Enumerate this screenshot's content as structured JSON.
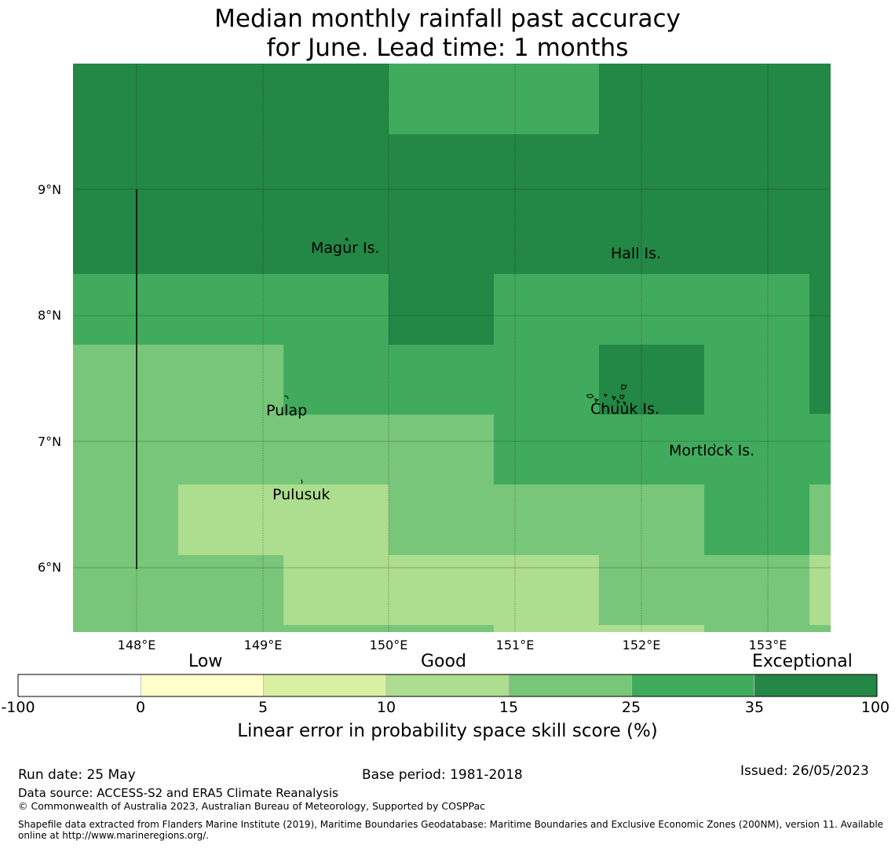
{
  "title": {
    "line1": "Median monthly rainfall past accuracy",
    "line2": "for June. Lead time: 1 months"
  },
  "map": {
    "lon_range": [
      147.5,
      153.5
    ],
    "lat_range": [
      5.5,
      10.0
    ],
    "lat_ticks": [
      "9°N",
      "8°N",
      "7°N",
      "6°N"
    ],
    "lon_ticks": [
      "148°E",
      "149°E",
      "150°E",
      "151°E",
      "152°E",
      "153°E"
    ],
    "places": [
      {
        "name": "Magur Is."
      },
      {
        "name": "Hall Is."
      },
      {
        "name": "Pulap"
      },
      {
        "name": "Chuuk Is."
      },
      {
        "name": "Mortlock Is."
      },
      {
        "name": "Pulusuk"
      }
    ],
    "skill_colors": {
      "exceptional": "#238745",
      "good_high": "#41ab5d",
      "good_mid": "#78c679",
      "good_low": "#addd8e",
      "low_high": "#d9f0a3",
      "low_low": "#ffffcc",
      "none": "#ffffff"
    }
  },
  "colorbar": {
    "category_labels": {
      "low": "Low",
      "good": "Good",
      "exceptional": "Exceptional"
    },
    "ticks": [
      "-100",
      "0",
      "5",
      "10",
      "15",
      "25",
      "35",
      "100"
    ],
    "colors": [
      "#ffffff",
      "#ffffcc",
      "#d9f0a3",
      "#addd8e",
      "#78c679",
      "#41ab5d",
      "#238745"
    ],
    "title": "Linear error in probability space skill score (%)"
  },
  "footer": {
    "run_date": "Run date: 25 May",
    "base_period": "Base period: 1981-2018",
    "issued": "Issued: 26/05/2023",
    "data_source": "Data source: ACCESS-S2 and ERA5 Climate Reanalysis",
    "copyright": "© Commonwealth of Australia 2023, Australian Bureau of Meteorology, Supported by COSPPac",
    "shapefile": "Shapefile data extracted from Flanders Marine Institute (2019), Maritime Boundaries Geodatabase: Maritime Boundaries and Exclusive Economic Zones (200NM), version 11. Available online at http://www.marineregions.org/."
  }
}
